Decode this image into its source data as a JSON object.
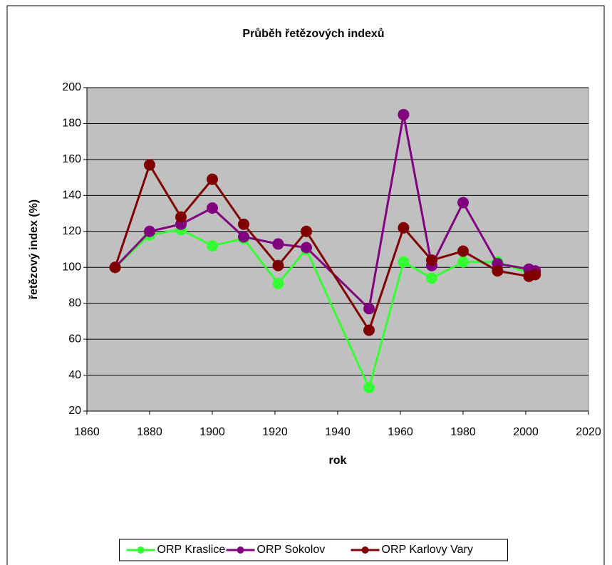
{
  "chart_data": {
    "type": "line",
    "title": "Průběh řetězových indexů",
    "x_label": "rok",
    "y_label": "řetězový index (%)",
    "x": [
      1869,
      1880,
      1890,
      1900,
      1910,
      1921,
      1930,
      1950,
      1961,
      1970,
      1980,
      1991,
      2001,
      2003
    ],
    "series": [
      {
        "name": "ORP Kraslice",
        "color": "#33ff33",
        "values": [
          100,
          118,
          121,
          112,
          116,
          91,
          110,
          33,
          103,
          94,
          103,
          103,
          97,
          97
        ]
      },
      {
        "name": "ORP Sokolov",
        "color": "#800080",
        "values": [
          100,
          120,
          124,
          133,
          117,
          113,
          111,
          77,
          185,
          101,
          136,
          102,
          99,
          98
        ]
      },
      {
        "name": "ORP Karlovy Vary",
        "color": "#800000",
        "values": [
          100,
          157,
          128,
          149,
          124,
          101,
          120,
          65,
          122,
          104,
          109,
          98,
          95,
          96
        ]
      }
    ],
    "xlim": [
      1860,
      2020
    ],
    "xticks": [
      1860,
      1880,
      1900,
      1920,
      1940,
      1960,
      1980,
      2000,
      2020
    ],
    "ylim": [
      20,
      200
    ],
    "yticks": [
      20,
      40,
      60,
      80,
      100,
      120,
      140,
      160,
      180,
      200
    ],
    "grid": true,
    "legend": "bottom"
  }
}
